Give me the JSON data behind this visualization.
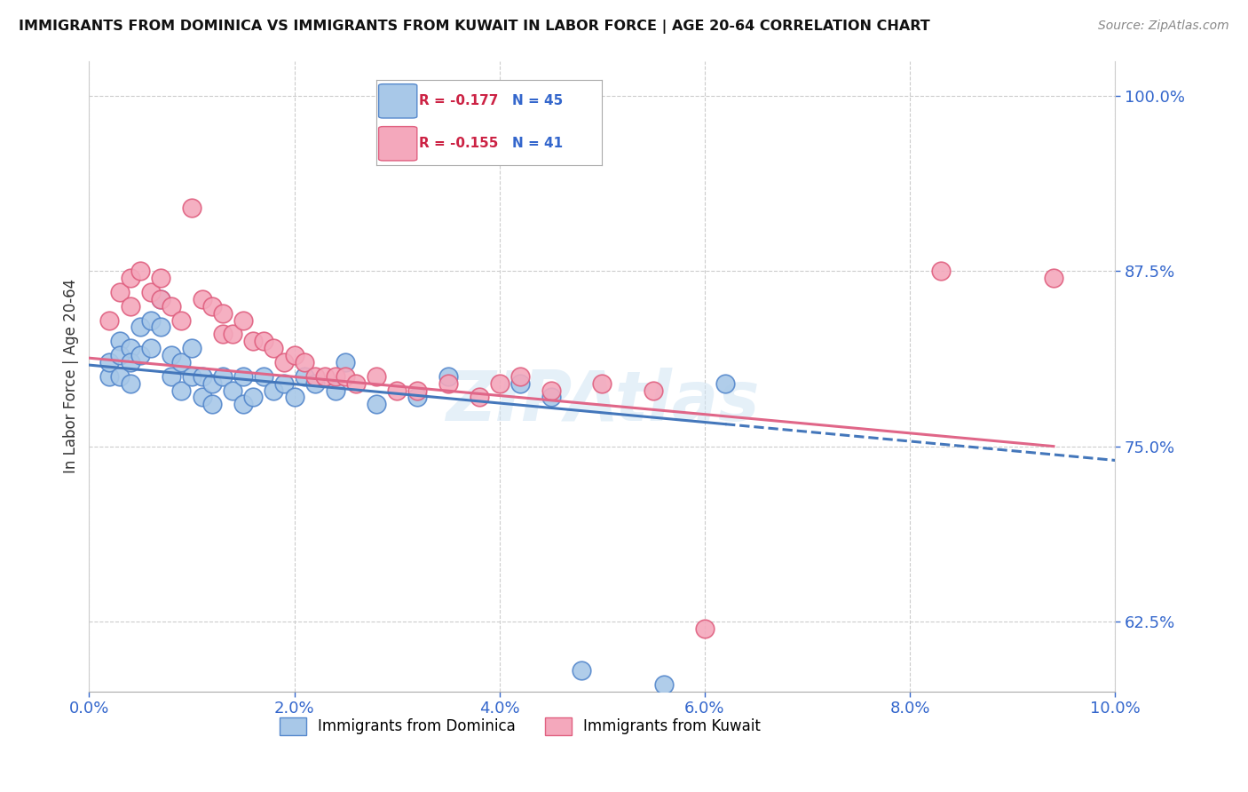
{
  "title": "IMMIGRANTS FROM DOMINICA VS IMMIGRANTS FROM KUWAIT IN LABOR FORCE | AGE 20-64 CORRELATION CHART",
  "source": "Source: ZipAtlas.com",
  "ylabel": "In Labor Force | Age 20-64",
  "xlim": [
    0.0,
    0.1
  ],
  "ylim": [
    0.575,
    1.025
  ],
  "yticks": [
    0.625,
    0.75,
    0.875,
    1.0
  ],
  "ytick_labels": [
    "62.5%",
    "75.0%",
    "87.5%",
    "100.0%"
  ],
  "xticks": [
    0.0,
    0.02,
    0.04,
    0.06,
    0.08,
    0.1
  ],
  "xtick_labels": [
    "0.0%",
    "2.0%",
    "4.0%",
    "6.0%",
    "8.0%",
    "10.0%"
  ],
  "dominica_color": "#a8c8e8",
  "kuwait_color": "#f4a8bc",
  "dominica_edge": "#5588cc",
  "kuwait_edge": "#e06080",
  "trend_blue": "#4477bb",
  "trend_pink": "#e06688",
  "R_dominica": -0.177,
  "N_dominica": 45,
  "R_kuwait": -0.155,
  "N_kuwait": 41,
  "legend_label_1": "Immigrants from Dominica",
  "legend_label_2": "Immigrants from Kuwait",
  "watermark": "ZIPAtlas",
  "dominica_x": [
    0.002,
    0.002,
    0.003,
    0.003,
    0.003,
    0.004,
    0.004,
    0.004,
    0.005,
    0.005,
    0.006,
    0.006,
    0.007,
    0.007,
    0.008,
    0.008,
    0.009,
    0.009,
    0.01,
    0.01,
    0.011,
    0.011,
    0.012,
    0.012,
    0.013,
    0.014,
    0.015,
    0.015,
    0.016,
    0.017,
    0.018,
    0.019,
    0.02,
    0.021,
    0.022,
    0.024,
    0.025,
    0.028,
    0.032,
    0.035,
    0.042,
    0.045,
    0.048,
    0.056,
    0.062
  ],
  "dominica_y": [
    0.8,
    0.81,
    0.825,
    0.815,
    0.8,
    0.82,
    0.81,
    0.795,
    0.835,
    0.815,
    0.84,
    0.82,
    0.855,
    0.835,
    0.815,
    0.8,
    0.79,
    0.81,
    0.82,
    0.8,
    0.8,
    0.785,
    0.795,
    0.78,
    0.8,
    0.79,
    0.8,
    0.78,
    0.785,
    0.8,
    0.79,
    0.795,
    0.785,
    0.8,
    0.795,
    0.79,
    0.81,
    0.78,
    0.785,
    0.8,
    0.795,
    0.785,
    0.59,
    0.58,
    0.795
  ],
  "kuwait_x": [
    0.002,
    0.003,
    0.004,
    0.004,
    0.005,
    0.006,
    0.007,
    0.007,
    0.008,
    0.009,
    0.01,
    0.011,
    0.012,
    0.013,
    0.013,
    0.014,
    0.015,
    0.016,
    0.017,
    0.018,
    0.019,
    0.02,
    0.021,
    0.022,
    0.023,
    0.024,
    0.025,
    0.026,
    0.028,
    0.03,
    0.032,
    0.035,
    0.038,
    0.04,
    0.042,
    0.045,
    0.05,
    0.055,
    0.06,
    0.083,
    0.094
  ],
  "kuwait_y": [
    0.84,
    0.86,
    0.87,
    0.85,
    0.875,
    0.86,
    0.87,
    0.855,
    0.85,
    0.84,
    0.92,
    0.855,
    0.85,
    0.845,
    0.83,
    0.83,
    0.84,
    0.825,
    0.825,
    0.82,
    0.81,
    0.815,
    0.81,
    0.8,
    0.8,
    0.8,
    0.8,
    0.795,
    0.8,
    0.79,
    0.79,
    0.795,
    0.785,
    0.795,
    0.8,
    0.79,
    0.795,
    0.79,
    0.62,
    0.875,
    0.87
  ],
  "trend_dom_x0": 0.0,
  "trend_dom_y0": 0.808,
  "trend_dom_x1": 0.1,
  "trend_dom_y1": 0.74,
  "trend_dom_solid_end": 0.062,
  "trend_kuw_x0": 0.0,
  "trend_kuw_y0": 0.813,
  "trend_kuw_x1": 0.094,
  "trend_kuw_y1": 0.75
}
